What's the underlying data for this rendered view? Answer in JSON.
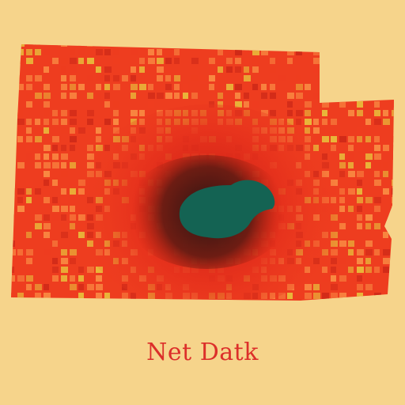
{
  "map": {
    "caption": "Net Datk"
  },
  "colors": {
    "background": "#f6d48b",
    "region_base": "#ee3d1f",
    "cell_light": "#f98a42",
    "cell_yellow": "#e8b93a",
    "cell_dark": "#d02a18",
    "hotspot_shadow": "#2b1613",
    "hotspot_core": "#146353",
    "caption": "#dc2f2a"
  }
}
